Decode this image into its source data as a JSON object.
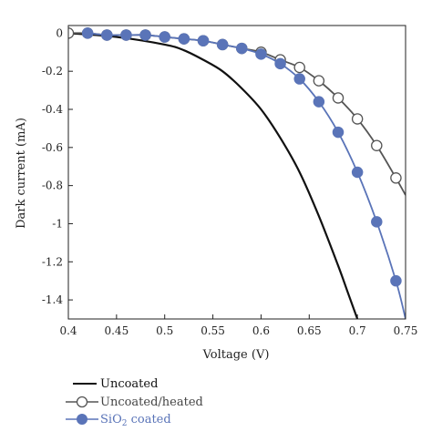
{
  "chart_data": {
    "type": "line",
    "title": "",
    "xlabel": "Voltage (V)",
    "ylabel": "Dark current (mA)",
    "xlim": [
      0.4,
      0.75
    ],
    "ylim": [
      -1.5,
      0.04
    ],
    "grid": false,
    "x_ticks": [
      "0.4",
      "0.45",
      "0.5",
      "0.55",
      "0.6",
      "0.65",
      "0.7",
      "0.75"
    ],
    "y_ticks": [
      "0",
      "-0.2",
      "-0.4",
      "-0.6",
      "-0.8",
      "-1",
      "-1.2",
      "-1.4"
    ],
    "legend_position": "bottom-left, below plot",
    "series": [
      {
        "name": "Uncoated",
        "color": "#111111",
        "marker": "none",
        "x": [
          0.4,
          0.45,
          0.5,
          0.52,
          0.54,
          0.56,
          0.58,
          0.6,
          0.62,
          0.64,
          0.66,
          0.68,
          0.69,
          0.7
        ],
        "y": [
          0.0,
          -0.02,
          -0.06,
          -0.09,
          -0.14,
          -0.2,
          -0.29,
          -0.4,
          -0.55,
          -0.73,
          -0.96,
          -1.22,
          -1.36,
          -1.5
        ]
      },
      {
        "name": "Uncoated/heated",
        "color": "#555555",
        "marker": "open-circle",
        "x": [
          0.4,
          0.42,
          0.44,
          0.46,
          0.48,
          0.5,
          0.52,
          0.54,
          0.56,
          0.58,
          0.6,
          0.62,
          0.64,
          0.66,
          0.68,
          0.7,
          0.72,
          0.74,
          0.75
        ],
        "y": [
          0.0,
          0.0,
          -0.01,
          -0.01,
          -0.01,
          -0.02,
          -0.03,
          -0.04,
          -0.06,
          -0.08,
          -0.1,
          -0.14,
          -0.18,
          -0.25,
          -0.34,
          -0.45,
          -0.59,
          -0.76,
          -0.85
        ]
      },
      {
        "name": "SiO2 coated",
        "color": "#5a74b8",
        "marker": "filled-circle",
        "x": [
          0.42,
          0.44,
          0.46,
          0.48,
          0.5,
          0.52,
          0.54,
          0.56,
          0.58,
          0.6,
          0.62,
          0.64,
          0.66,
          0.68,
          0.7,
          0.72,
          0.74,
          0.75
        ],
        "y": [
          0.0,
          -0.01,
          -0.01,
          -0.01,
          -0.02,
          -0.03,
          -0.04,
          -0.06,
          -0.08,
          -0.11,
          -0.16,
          -0.24,
          -0.36,
          -0.52,
          -0.73,
          -0.99,
          -1.3,
          -1.5
        ]
      }
    ],
    "marker_points": {
      "Uncoated/heated": [
        0.4,
        0.42,
        0.44,
        0.46,
        0.48,
        0.5,
        0.52,
        0.54,
        0.56,
        0.58,
        0.6,
        0.62,
        0.64,
        0.66,
        0.68,
        0.7,
        0.72,
        0.74
      ],
      "SiO2 coated": [
        0.42,
        0.44,
        0.46,
        0.48,
        0.5,
        0.52,
        0.54,
        0.56,
        0.58,
        0.6,
        0.62,
        0.64,
        0.66,
        0.68,
        0.7,
        0.72,
        0.74
      ]
    }
  },
  "legend": {
    "uncoated_label": "Uncoated",
    "heated_label": "Uncoated/heated",
    "sio2_prefix": "SiO",
    "sio2_sub": "2",
    "sio2_suffix": " coated"
  }
}
